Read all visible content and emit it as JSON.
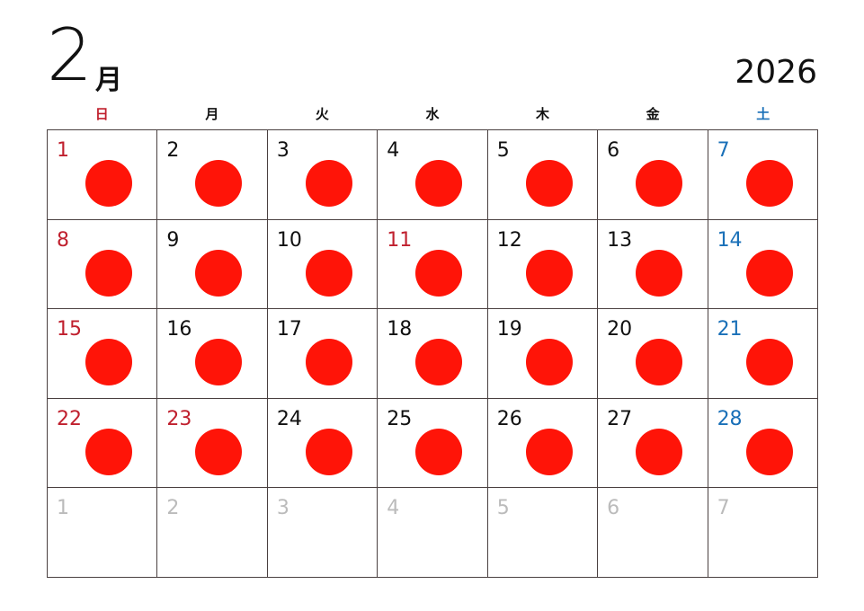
{
  "month": "2",
  "month_suffix": "月",
  "year": "2026",
  "weekdays": [
    "日",
    "月",
    "火",
    "水",
    "木",
    "金",
    "土"
  ],
  "colors": {
    "sunday": "#c0202e",
    "saturday": "#1a70b8",
    "weekday": "#111111",
    "other_month": "#bbbbbb",
    "dot": "#ff1408"
  },
  "days": [
    {
      "n": "1",
      "t": "sun",
      "dot": true
    },
    {
      "n": "2",
      "t": "wd",
      "dot": true
    },
    {
      "n": "3",
      "t": "wd",
      "dot": true
    },
    {
      "n": "4",
      "t": "wd",
      "dot": true
    },
    {
      "n": "5",
      "t": "wd",
      "dot": true
    },
    {
      "n": "6",
      "t": "wd",
      "dot": true
    },
    {
      "n": "7",
      "t": "sat",
      "dot": true
    },
    {
      "n": "8",
      "t": "sun",
      "dot": true
    },
    {
      "n": "9",
      "t": "wd",
      "dot": true
    },
    {
      "n": "10",
      "t": "wd",
      "dot": true
    },
    {
      "n": "11",
      "t": "sun",
      "dot": true
    },
    {
      "n": "12",
      "t": "wd",
      "dot": true
    },
    {
      "n": "13",
      "t": "wd",
      "dot": true
    },
    {
      "n": "14",
      "t": "sat",
      "dot": true
    },
    {
      "n": "15",
      "t": "sun",
      "dot": true
    },
    {
      "n": "16",
      "t": "wd",
      "dot": true
    },
    {
      "n": "17",
      "t": "wd",
      "dot": true
    },
    {
      "n": "18",
      "t": "wd",
      "dot": true
    },
    {
      "n": "19",
      "t": "wd",
      "dot": true
    },
    {
      "n": "20",
      "t": "wd",
      "dot": true
    },
    {
      "n": "21",
      "t": "sat",
      "dot": true
    },
    {
      "n": "22",
      "t": "sun",
      "dot": true
    },
    {
      "n": "23",
      "t": "sun",
      "dot": true
    },
    {
      "n": "24",
      "t": "wd",
      "dot": true
    },
    {
      "n": "25",
      "t": "wd",
      "dot": true
    },
    {
      "n": "26",
      "t": "wd",
      "dot": true
    },
    {
      "n": "27",
      "t": "wd",
      "dot": true
    },
    {
      "n": "28",
      "t": "sat",
      "dot": true
    },
    {
      "n": "1",
      "t": "other",
      "dot": false
    },
    {
      "n": "2",
      "t": "other",
      "dot": false
    },
    {
      "n": "3",
      "t": "other",
      "dot": false
    },
    {
      "n": "4",
      "t": "other",
      "dot": false
    },
    {
      "n": "5",
      "t": "other",
      "dot": false
    },
    {
      "n": "6",
      "t": "other",
      "dot": false
    },
    {
      "n": "7",
      "t": "other",
      "dot": false
    }
  ]
}
